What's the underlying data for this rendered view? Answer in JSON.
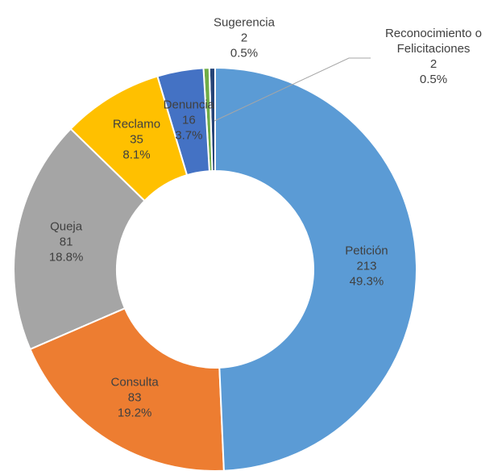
{
  "chart_data": {
    "type": "donut",
    "categories": [
      "Petición",
      "Consulta",
      "Queja",
      "Reclamo",
      "Denuncia",
      "Sugerencia",
      "Reconocimiento o Felicitaciones"
    ],
    "values": [
      213,
      83,
      81,
      35,
      16,
      2,
      2
    ],
    "percent_labels": [
      "49.3%",
      "19.2%",
      "18.8%",
      "8.1%",
      "3.7%",
      "0.5%",
      "0.5%"
    ],
    "colors": [
      "#5b9bd5",
      "#ed7d31",
      "#a5a5a5",
      "#ffc000",
      "#4472c4",
      "#70ad47",
      "#264478"
    ]
  }
}
